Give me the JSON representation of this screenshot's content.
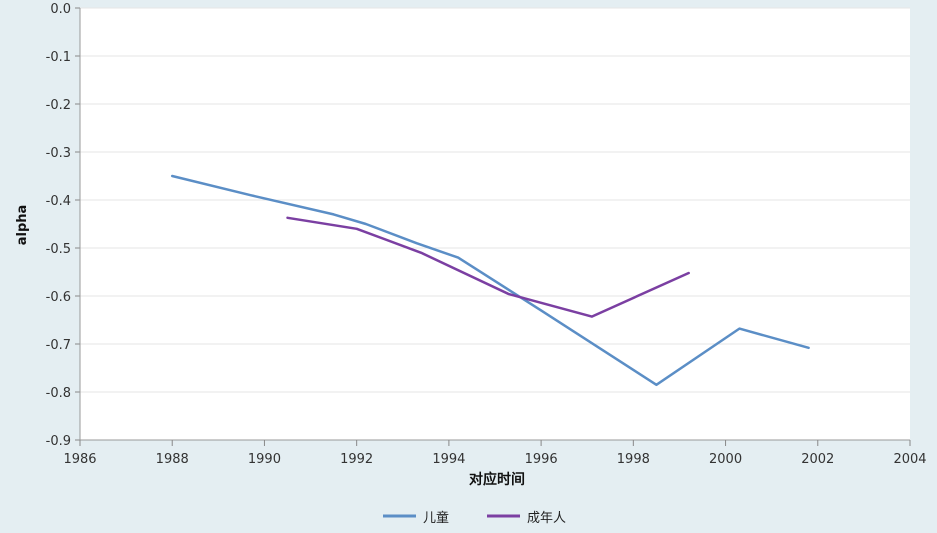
{
  "chart_data": {
    "type": "line",
    "xlabel": "对应时间",
    "ylabel": "alpha",
    "xlim": [
      1986,
      2004
    ],
    "ylim": [
      -0.9,
      0.0
    ],
    "x_ticks": [
      1986,
      1988,
      1990,
      1992,
      1994,
      1996,
      1998,
      2000,
      2002,
      2004
    ],
    "x_tick_labels": [
      "1986",
      "1988",
      "1990",
      "1992",
      "1994",
      "1996",
      "1998",
      "2000",
      "2002",
      "2004"
    ],
    "y_ticks": [
      0.0,
      -0.1,
      -0.2,
      -0.3,
      -0.4,
      -0.5,
      -0.6,
      -0.7,
      -0.8,
      -0.9
    ],
    "y_tick_labels": [
      "0.0",
      "-0.1",
      "-0.2",
      "-0.3",
      "-0.4",
      "-0.5",
      "-0.6",
      "-0.7",
      "-0.8",
      "-0.9"
    ],
    "grid": "horizontal",
    "legend_position": "bottom-center",
    "series": [
      {
        "name": "儿童",
        "color": "#5b8ec6",
        "points": [
          {
            "x": 1988.0,
            "y": -0.35
          },
          {
            "x": 1989.7,
            "y": -0.39
          },
          {
            "x": 1991.5,
            "y": -0.43
          },
          {
            "x": 1992.2,
            "y": -0.45
          },
          {
            "x": 1993.3,
            "y": -0.49
          },
          {
            "x": 1994.2,
            "y": -0.52
          },
          {
            "x": 1996.0,
            "y": -0.63
          },
          {
            "x": 1998.5,
            "y": -0.785
          },
          {
            "x": 2000.3,
            "y": -0.668
          },
          {
            "x": 2001.8,
            "y": -0.708
          }
        ]
      },
      {
        "name": "成年人",
        "color": "#7b3fa2",
        "points": [
          {
            "x": 1990.5,
            "y": -0.437
          },
          {
            "x": 1992.0,
            "y": -0.46
          },
          {
            "x": 1993.4,
            "y": -0.51
          },
          {
            "x": 1995.3,
            "y": -0.596
          },
          {
            "x": 1997.1,
            "y": -0.643
          },
          {
            "x": 1999.2,
            "y": -0.552
          }
        ]
      }
    ]
  }
}
